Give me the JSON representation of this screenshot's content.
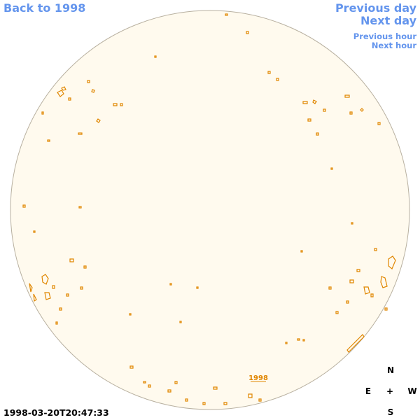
{
  "nav": {
    "back": "Back to 1998",
    "previous_day": "Previous day",
    "next_day": "Next day",
    "previous_hour": "Previous hour",
    "next_hour": "Next hour"
  },
  "disk_link": "1998",
  "compass": {
    "north": "N",
    "east": "E",
    "center": "+",
    "west": "W",
    "south": "S"
  },
  "timestamp": "1998-03-20T20:47:33"
}
